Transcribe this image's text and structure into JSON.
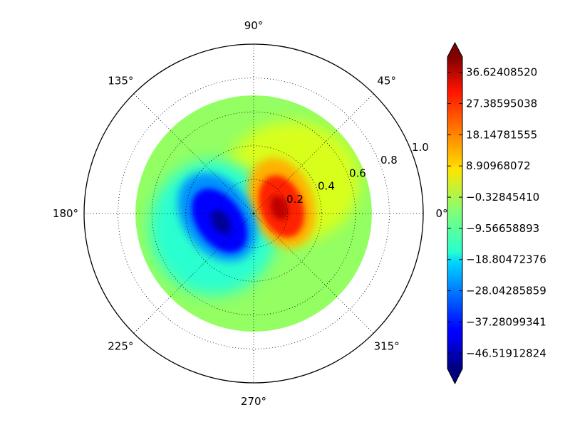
{
  "chart_data": {
    "type": "heatmap",
    "projection": "polar",
    "grid": true,
    "r_max": 1.0,
    "data_r_max": 0.7,
    "angle_ticks": [
      {
        "deg": 0,
        "label": "0°"
      },
      {
        "deg": 45,
        "label": "45°"
      },
      {
        "deg": 90,
        "label": "90°"
      },
      {
        "deg": 135,
        "label": "135°"
      },
      {
        "deg": 180,
        "label": "180°"
      },
      {
        "deg": 225,
        "label": "225°"
      },
      {
        "deg": 270,
        "label": "270°"
      },
      {
        "deg": 315,
        "label": "315°"
      }
    ],
    "radial_ticks": [
      {
        "r": 0.2,
        "label": "0.2"
      },
      {
        "r": 0.4,
        "label": "0.4"
      },
      {
        "r": 0.6,
        "label": "0.6"
      },
      {
        "r": 0.8,
        "label": "0.8"
      },
      {
        "r": 1.0,
        "label": "1.0"
      }
    ],
    "field_extrema": [
      {
        "kind": "max",
        "r": 0.22,
        "theta_deg": -5,
        "value": 42
      },
      {
        "kind": "min",
        "r": 0.22,
        "theta_deg": 200,
        "value": -50
      }
    ],
    "colorbar": {
      "colormap": "jet",
      "extend": "both",
      "vmin": -51.1,
      "vmax": 41.2,
      "ticks": [
        "36.62408520",
        "27.38595038",
        "18.14781555",
        "8.90968072",
        "−0.32845410",
        "−9.56658893",
        "−18.80472376",
        "−28.04285859",
        "−37.28099341",
        "−46.51912824"
      ]
    }
  }
}
